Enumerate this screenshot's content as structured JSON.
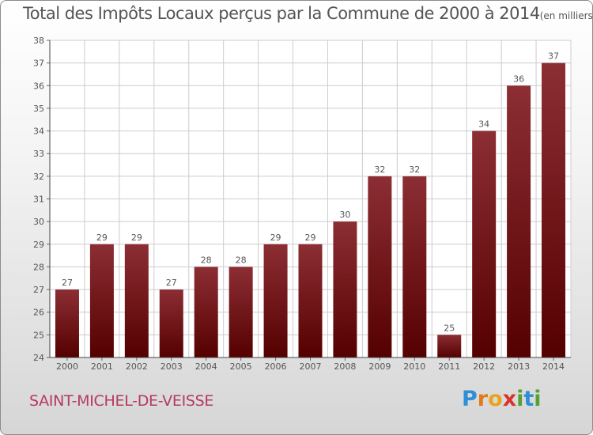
{
  "title": {
    "main": "Total des Impôts Locaux perçus par la Commune de 2000 à 2014",
    "unit": "(en milliers d'€)"
  },
  "commune": "SAINT-MICHEL-DE-VEISSE",
  "logo": {
    "text": "Proxiti",
    "letters": [
      {
        "ch": "P",
        "color": "#2e8fd6"
      },
      {
        "ch": "r",
        "color": "#e07a1a"
      },
      {
        "ch": "o",
        "color": "#e9a31d"
      },
      {
        "ch": "x",
        "color": "#d8342b"
      },
      {
        "ch": "i",
        "color": "#54a234"
      },
      {
        "ch": "t",
        "color": "#2e8fd6"
      },
      {
        "ch": "i",
        "color": "#54a234"
      }
    ]
  },
  "chart_data": {
    "type": "bar",
    "title": "Total des Impôts Locaux perçus par la Commune de 2000 à 2014",
    "categories": [
      "2000",
      "2001",
      "2002",
      "2003",
      "2004",
      "2005",
      "2006",
      "2007",
      "2008",
      "2009",
      "2010",
      "2011",
      "2012",
      "2013",
      "2014"
    ],
    "values": [
      27,
      29,
      29,
      27,
      28,
      28,
      29,
      29,
      30,
      32,
      32,
      25,
      34,
      36,
      37
    ],
    "ylim": [
      24,
      38
    ],
    "yticks": [
      24,
      25,
      26,
      27,
      28,
      29,
      30,
      31,
      32,
      33,
      34,
      35,
      36,
      37,
      38
    ],
    "grid": true,
    "data_labels": true,
    "colors": {
      "bar_top": "#8c2e34",
      "bar_bottom": "#550000",
      "grid": "#cccccc",
      "text": "#555555"
    }
  }
}
